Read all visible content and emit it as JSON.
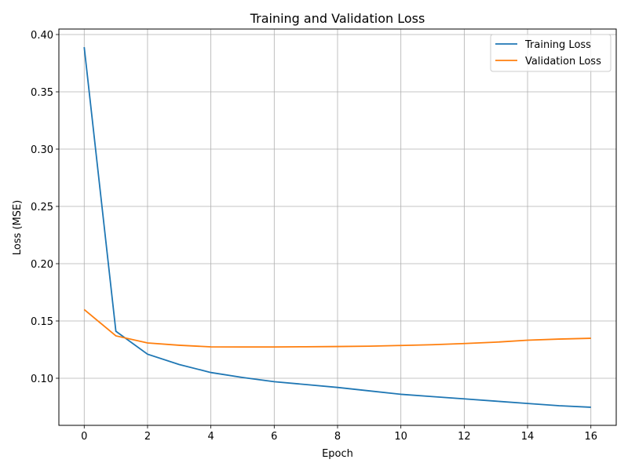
{
  "chart_data": {
    "type": "line",
    "title": "Training and Validation Loss",
    "xlabel": "Epoch",
    "ylabel": "Loss (MSE)",
    "xlim": [
      -0.8,
      16.8
    ],
    "ylim": [
      0.0589,
      0.4048
    ],
    "xticks": [
      0,
      2,
      4,
      6,
      8,
      10,
      12,
      14,
      16
    ],
    "xtick_labels": [
      "0",
      "2",
      "4",
      "6",
      "8",
      "10",
      "12",
      "14",
      "16"
    ],
    "yticks": [
      0.1,
      0.15,
      0.2,
      0.25,
      0.3,
      0.35,
      0.4
    ],
    "ytick_labels": [
      "0.10",
      "0.15",
      "0.20",
      "0.25",
      "0.30",
      "0.35",
      "0.40"
    ],
    "grid": true,
    "legend_position": "top-right",
    "x": [
      0,
      1,
      2,
      3,
      4,
      5,
      6,
      7,
      8,
      9,
      10,
      11,
      12,
      13,
      14,
      15,
      16
    ],
    "series": [
      {
        "name": "Training Loss",
        "color": "#1f77b4",
        "values": [
          0.389,
          0.141,
          0.121,
          0.112,
          0.105,
          0.1007,
          0.097,
          0.0945,
          0.092,
          0.089,
          0.086,
          0.084,
          0.082,
          0.08,
          0.078,
          0.076,
          0.0747
        ]
      },
      {
        "name": "Validation Loss",
        "color": "#ff7f0e",
        "values": [
          0.16,
          0.137,
          0.1308,
          0.1288,
          0.1274,
          0.1273,
          0.1273,
          0.1275,
          0.1277,
          0.128,
          0.1286,
          0.1293,
          0.1303,
          0.1315,
          0.1332,
          0.1342,
          0.1349
        ]
      }
    ]
  }
}
